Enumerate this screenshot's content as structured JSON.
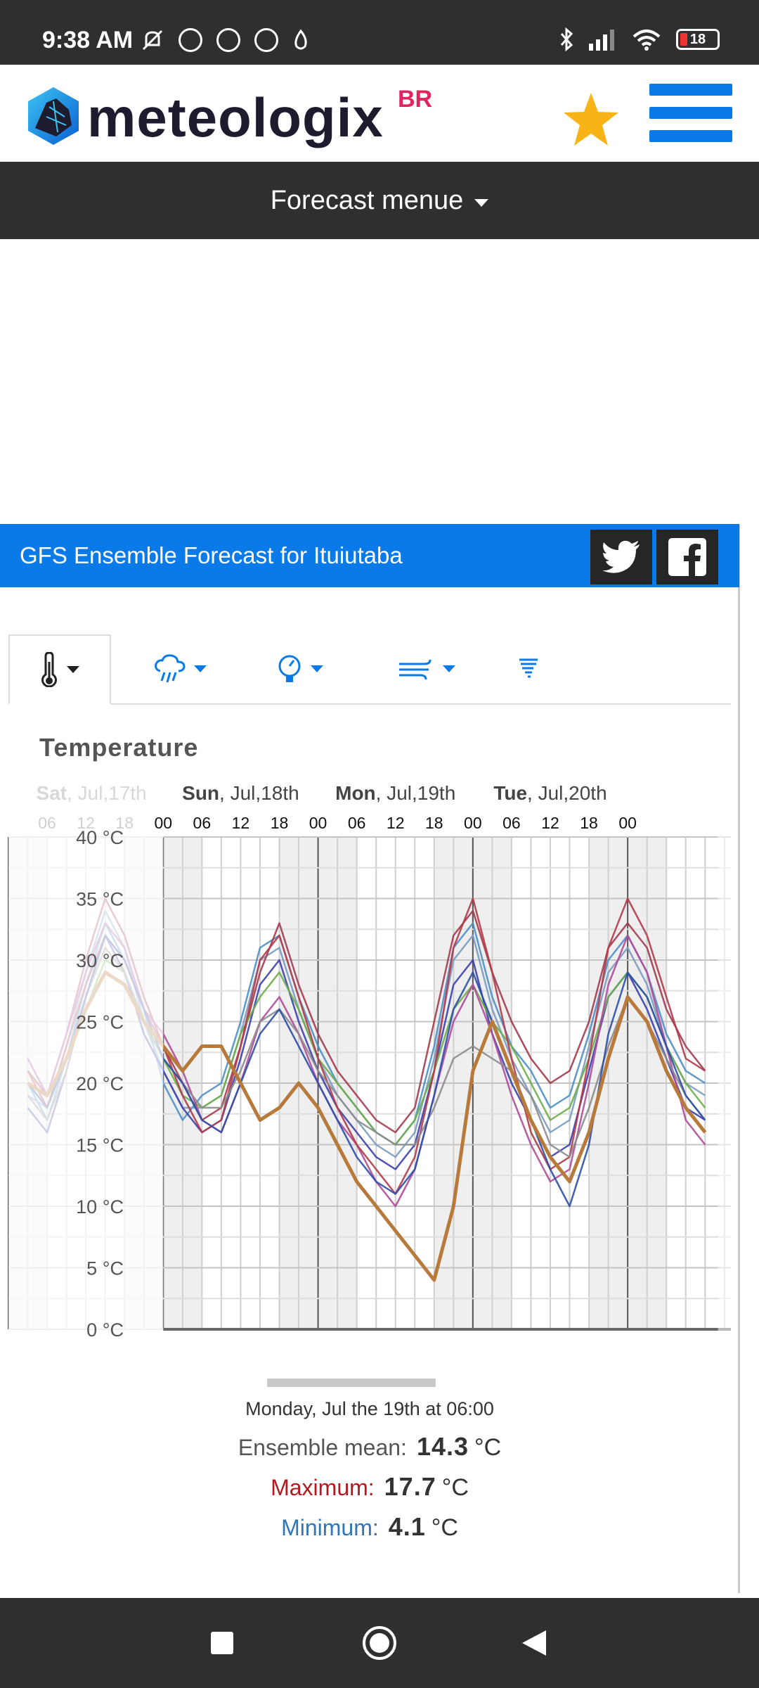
{
  "status_bar": {
    "time": "9:38 AM",
    "battery": "18",
    "icons": [
      "mute-icon",
      "alarm-icon",
      "whatsapp-icon",
      "chrome-icon",
      "flame-icon",
      "bluetooth-icon",
      "signal-icon",
      "wifi-icon",
      "battery-icon"
    ]
  },
  "header": {
    "logo_text": "meteologix",
    "logo_suffix": "BR",
    "favorite_icon": "star-icon",
    "menu_icon": "hamburger-icon"
  },
  "forecast_menu": {
    "label": "Forecast menue"
  },
  "forecast_card": {
    "title": "GFS Ensemble Forecast for Ituiutaba",
    "social": [
      "twitter-icon",
      "facebook-icon"
    ]
  },
  "tabs": [
    {
      "icon": "thermometer-icon",
      "active": true
    },
    {
      "icon": "rain-icon",
      "active": false
    },
    {
      "icon": "pressure-gauge-icon",
      "active": false
    },
    {
      "icon": "wind-icon",
      "active": false
    },
    {
      "icon": "cape-icon",
      "active": false
    }
  ],
  "colors": {
    "accent": "#0a7ae8",
    "dark": "#2e2f31",
    "maximum": "#b3181e",
    "minimum": "#2f76b8",
    "highlight_member": "#b87a3a"
  },
  "chart_data": {
    "type": "line",
    "title": "Temperature",
    "day_labels": [
      {
        "bold": "Sat",
        "rest": ", Jul,17th"
      },
      {
        "bold": "Sun",
        "rest": ", Jul,18th"
      },
      {
        "bold": "Mon",
        "rest": ", Jul,19th"
      },
      {
        "bold": "Tue",
        "rest": ", Jul,20th"
      }
    ],
    "hour_ticks": [
      "06",
      "12",
      "18",
      "00",
      "06",
      "12",
      "18",
      "00",
      "06",
      "12",
      "18",
      "00",
      "06",
      "12",
      "18",
      "00"
    ],
    "y_ticks": [
      "40 °C",
      "35 °C",
      "30 °C",
      "25 °C",
      "20 °C",
      "15 °C",
      "10 °C",
      "5 °C",
      "0 °C"
    ],
    "ylim": [
      0,
      40
    ],
    "x_unit": "hours from Sat Jul 17th 00:00",
    "x": [
      3,
      6,
      9,
      12,
      15,
      18,
      21,
      24,
      27,
      30,
      33,
      36,
      39,
      42,
      45,
      48,
      51,
      54,
      57,
      60,
      63,
      66,
      69,
      72,
      75,
      78,
      81,
      84,
      87,
      90,
      93,
      96,
      99,
      102,
      105,
      108
    ],
    "series": [
      {
        "values": [
          20,
          17,
          22,
          28,
          33,
          30,
          26,
          20,
          17,
          19,
          20,
          25,
          31,
          32,
          27,
          23,
          20,
          18,
          16,
          15,
          17,
          23,
          31,
          33,
          27,
          23,
          21,
          18,
          19,
          24,
          30,
          32,
          29,
          24,
          21,
          20
        ]
      },
      {
        "values": [
          19,
          18,
          23,
          29,
          34,
          31,
          25,
          21,
          18,
          18,
          19,
          24,
          30,
          31,
          26,
          22,
          19,
          17,
          15,
          14,
          16,
          22,
          30,
          32,
          26,
          22,
          19,
          16,
          17,
          23,
          29,
          31,
          28,
          23,
          20,
          19
        ]
      },
      {
        "values": [
          21,
          19,
          24,
          30,
          35,
          32,
          27,
          23,
          20,
          17,
          18,
          23,
          29,
          33,
          28,
          24,
          21,
          19,
          17,
          16,
          18,
          25,
          32,
          34,
          29,
          25,
          22,
          20,
          21,
          25,
          31,
          33,
          31,
          26,
          23,
          21
        ]
      },
      {
        "values": [
          18,
          16,
          21,
          27,
          32,
          29,
          24,
          21,
          18,
          16,
          17,
          22,
          28,
          30,
          25,
          21,
          18,
          16,
          14,
          13,
          15,
          21,
          28,
          30,
          24,
          20,
          17,
          14,
          15,
          21,
          27,
          29,
          26,
          22,
          18,
          17
        ]
      },
      {
        "values": [
          20,
          18,
          22,
          26,
          30,
          29,
          25,
          22,
          19,
          18,
          19,
          24,
          27,
          29,
          26,
          22,
          20,
          18,
          16,
          15,
          17,
          21,
          26,
          28,
          25,
          23,
          20,
          17,
          18,
          22,
          27,
          29,
          27,
          23,
          20,
          18
        ]
      },
      {
        "values": [
          22,
          19,
          24,
          29,
          33,
          31,
          26,
          24,
          21,
          17,
          16,
          20,
          25,
          27,
          24,
          20,
          17,
          15,
          12,
          10,
          13,
          19,
          25,
          28,
          24,
          19,
          15,
          12,
          13,
          20,
          28,
          32,
          29,
          23,
          17,
          15
        ]
      },
      {
        "values": [
          21,
          18,
          23,
          28,
          32,
          30,
          26,
          23,
          19,
          16,
          17,
          23,
          30,
          32,
          27,
          22,
          18,
          15,
          13,
          11,
          14,
          21,
          31,
          35,
          29,
          22,
          16,
          13,
          14,
          22,
          31,
          35,
          32,
          27,
          22,
          21
        ]
      },
      {
        "values": [
          19,
          17,
          21,
          27,
          31,
          29,
          25,
          22,
          20,
          18,
          18,
          21,
          25,
          26,
          24,
          21,
          19,
          17,
          16,
          15,
          15,
          18,
          22,
          23,
          22,
          21,
          19,
          15,
          14,
          18,
          23,
          27,
          25,
          22,
          19,
          17
        ]
      },
      {
        "values": [
          20,
          18,
          22,
          27,
          32,
          30,
          26,
          22,
          20,
          17,
          16,
          20,
          24,
          26,
          23,
          20,
          17,
          14,
          12,
          11,
          13,
          19,
          26,
          29,
          25,
          21,
          17,
          13,
          10,
          15,
          24,
          29,
          27,
          23,
          19,
          17
        ]
      },
      {
        "values": [
          20,
          19,
          22,
          26,
          29,
          28,
          25,
          23,
          21,
          23,
          23,
          20,
          17,
          18,
          20,
          18,
          15,
          12,
          10,
          8,
          6,
          4,
          10,
          21,
          25,
          21,
          17,
          14,
          12,
          16,
          22,
          27,
          25,
          21,
          18,
          16
        ]
      }
    ]
  },
  "summary": {
    "date": "Monday, Jul the 19th at 06:00",
    "mean_label": "Ensemble mean:",
    "mean_value": "14.3",
    "mean_unit": "°C",
    "max_label": "Maximum:",
    "max_value": "17.7",
    "max_unit": "°C",
    "min_label": "Minimum:",
    "min_value": "4.1",
    "min_unit": "°C"
  },
  "nav": [
    "recents-square-icon",
    "home-circle-icon",
    "back-triangle-icon"
  ]
}
